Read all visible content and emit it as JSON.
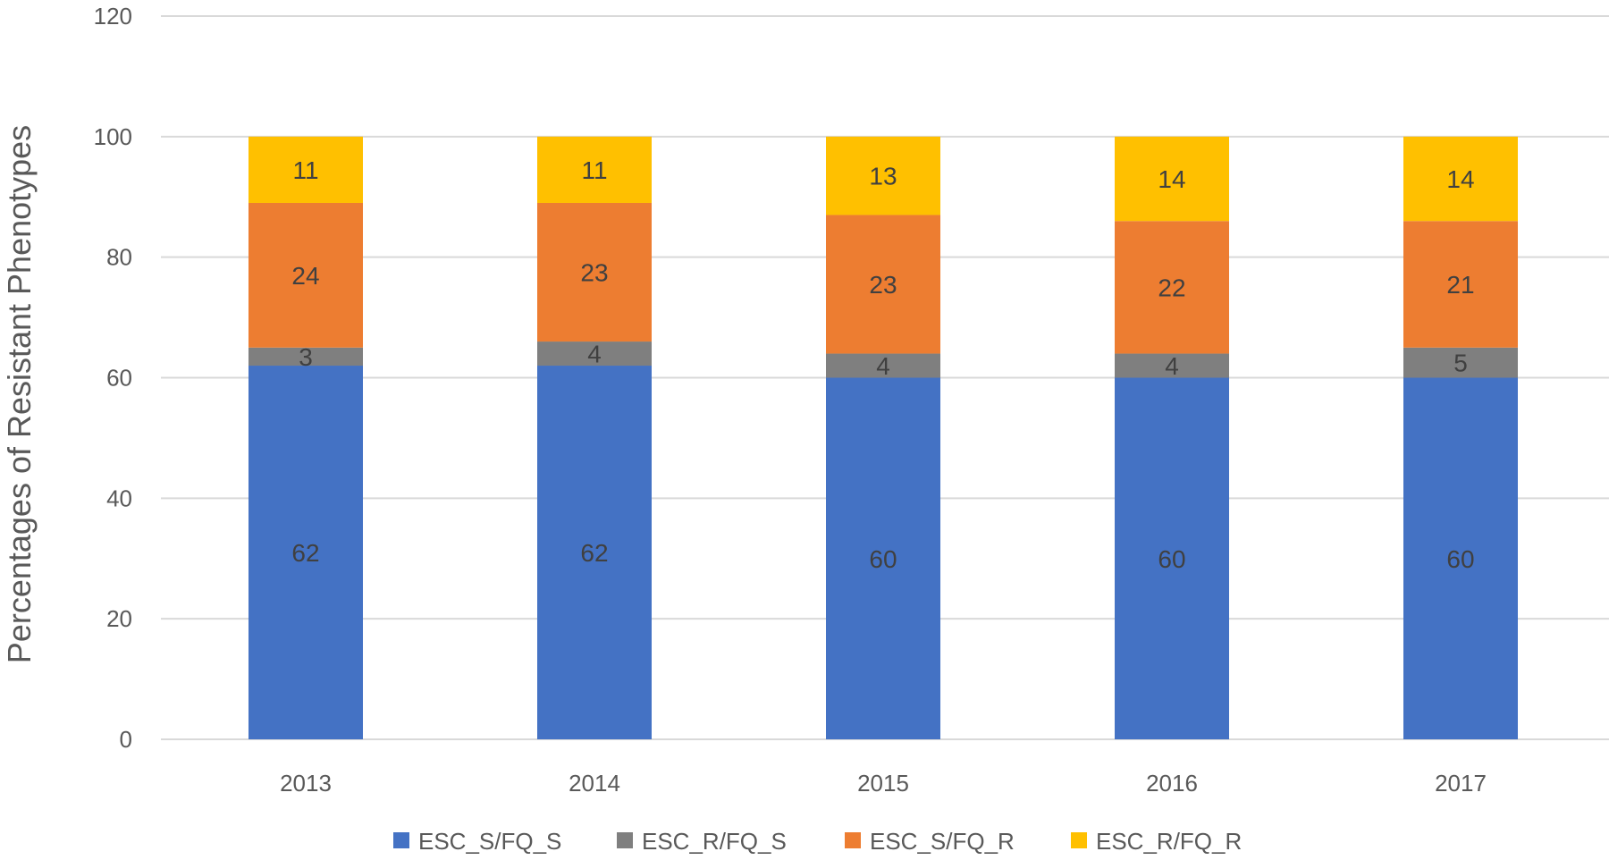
{
  "chart_data": {
    "type": "bar",
    "stacked": true,
    "title": "",
    "xlabel": "",
    "ylabel": "Percentages of Resistant Phenotypes",
    "ylim": [
      0,
      120
    ],
    "yticks": [
      0,
      20,
      40,
      60,
      80,
      100,
      120
    ],
    "grid": true,
    "legend_position": "bottom",
    "categories": [
      "2013",
      "2014",
      "2015",
      "2016",
      "2017"
    ],
    "series": [
      {
        "name": "ESC_S/FQ_S",
        "color": "#4472C4",
        "values": [
          62,
          62,
          60,
          60,
          60
        ]
      },
      {
        "name": "ESC_R/FQ_S",
        "color": "#7F7F7F",
        "values": [
          3,
          4,
          4,
          4,
          5
        ]
      },
      {
        "name": "ESC_S/FQ_R",
        "color": "#ED7D31",
        "values": [
          24,
          23,
          23,
          22,
          21
        ]
      },
      {
        "name": "ESC_R/FQ_R",
        "color": "#FFC000",
        "values": [
          11,
          11,
          13,
          14,
          14
        ]
      }
    ]
  }
}
